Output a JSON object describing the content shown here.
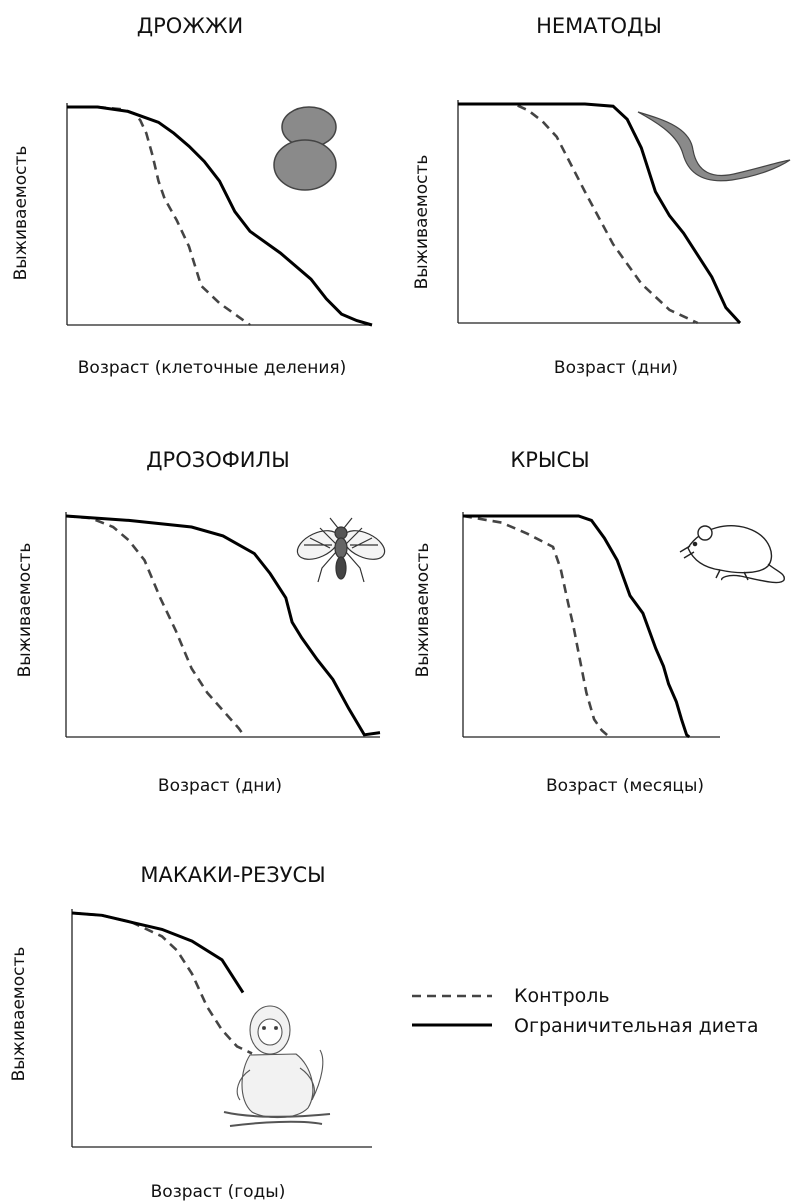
{
  "legend": {
    "control": "Контроль",
    "diet": "Ограничительная диета",
    "control_style": "dashed",
    "diet_style": "solid"
  },
  "chart_data": [
    {
      "type": "line",
      "title": "ДРОЖЖИ",
      "xlabel": "Возраст (клеточные деления)",
      "ylabel": "Выживаемость",
      "icon": "yeast-cells-icon",
      "xlim": [
        0,
        100
      ],
      "ylim": [
        0,
        1
      ],
      "series": [
        {
          "style": "dashed",
          "x": [
            0,
            10,
            18,
            22,
            24,
            26,
            28,
            30,
            32,
            36,
            40,
            44,
            50,
            56,
            60
          ],
          "y": [
            1.0,
            1.0,
            0.99,
            0.97,
            0.94,
            0.88,
            0.78,
            0.66,
            0.58,
            0.48,
            0.36,
            0.18,
            0.1,
            0.04,
            0.0
          ]
        },
        {
          "style": "solid",
          "x": [
            0,
            10,
            20,
            30,
            35,
            40,
            45,
            50,
            55,
            60,
            70,
            80,
            85,
            90,
            95,
            100
          ],
          "y": [
            1.0,
            1.0,
            0.98,
            0.93,
            0.88,
            0.82,
            0.75,
            0.66,
            0.52,
            0.43,
            0.33,
            0.21,
            0.12,
            0.05,
            0.02,
            0.0
          ]
        }
      ]
    },
    {
      "type": "line",
      "title": "НЕМАТОДЫ",
      "xlabel": "Возраст (дни)",
      "ylabel": "Выживаемость",
      "icon": "nematode-worm-icon",
      "xlim": [
        0,
        100
      ],
      "ylim": [
        0,
        1
      ],
      "series": [
        {
          "style": "dashed",
          "x": [
            0,
            20,
            25,
            30,
            35,
            45,
            55,
            65,
            75,
            85
          ],
          "y": [
            1.0,
            1.0,
            0.97,
            0.92,
            0.85,
            0.6,
            0.36,
            0.18,
            0.06,
            0.0
          ]
        },
        {
          "style": "solid",
          "x": [
            0,
            45,
            55,
            60,
            65,
            70,
            75,
            80,
            90,
            95,
            100
          ],
          "y": [
            1.0,
            1.0,
            0.99,
            0.93,
            0.8,
            0.6,
            0.49,
            0.41,
            0.21,
            0.07,
            0.0
          ]
        }
      ]
    },
    {
      "type": "line",
      "title": "ДРОЗОФИЛЫ",
      "xlabel": "Возраст (дни)",
      "ylabel": "Выживаемость",
      "icon": "fruit-fly-icon",
      "xlim": [
        0,
        100
      ],
      "ylim": [
        0,
        1
      ],
      "series": [
        {
          "style": "dashed",
          "x": [
            0,
            8,
            15,
            20,
            25,
            30,
            35,
            40,
            45,
            50,
            55,
            57
          ],
          "y": [
            1.0,
            0.99,
            0.95,
            0.89,
            0.8,
            0.63,
            0.48,
            0.31,
            0.2,
            0.12,
            0.04,
            0.0
          ]
        },
        {
          "style": "solid",
          "x": [
            0,
            20,
            40,
            50,
            60,
            65,
            70,
            72,
            75,
            80,
            85,
            90,
            95,
            100
          ],
          "y": [
            1.0,
            0.98,
            0.95,
            0.91,
            0.83,
            0.74,
            0.63,
            0.52,
            0.45,
            0.35,
            0.26,
            0.13,
            0.01,
            0.02
          ]
        }
      ]
    },
    {
      "type": "line",
      "title": "КРЫСЫ",
      "xlabel": "Возраст (месяцы)",
      "ylabel": "Выживаемость",
      "icon": "rat-icon",
      "xlim": [
        0,
        100
      ],
      "ylim": [
        0,
        1
      ],
      "series": [
        {
          "style": "dashed",
          "x": [
            0,
            15,
            25,
            35,
            38,
            41,
            43,
            45,
            48,
            51,
            54,
            57
          ],
          "y": [
            1.0,
            0.97,
            0.92,
            0.86,
            0.76,
            0.6,
            0.5,
            0.38,
            0.2,
            0.08,
            0.03,
            0.0
          ]
        },
        {
          "style": "solid",
          "x": [
            0,
            45,
            50,
            55,
            60,
            65,
            70,
            75,
            78,
            80,
            83,
            85,
            87,
            88
          ],
          "y": [
            1.0,
            1.0,
            0.98,
            0.9,
            0.8,
            0.64,
            0.56,
            0.4,
            0.32,
            0.24,
            0.16,
            0.08,
            0.01,
            0.0
          ]
        }
      ]
    },
    {
      "type": "line",
      "title": "МАКАКИ-РЕЗУСЫ",
      "xlabel": "Возраст (годы)",
      "ylabel": "Выживаемость",
      "icon": "rhesus-monkey-icon",
      "xlim": [
        0,
        100
      ],
      "ylim": [
        0,
        1
      ],
      "series": [
        {
          "style": "dashed",
          "x": [
            0,
            10,
            20,
            30,
            35,
            40,
            45,
            50,
            55,
            60
          ],
          "y": [
            1.0,
            0.99,
            0.96,
            0.9,
            0.84,
            0.74,
            0.6,
            0.5,
            0.43,
            0.4
          ]
        },
        {
          "style": "solid",
          "x": [
            0,
            10,
            20,
            30,
            40,
            50,
            57
          ],
          "y": [
            1.0,
            0.99,
            0.96,
            0.93,
            0.88,
            0.8,
            0.66
          ]
        }
      ]
    }
  ]
}
